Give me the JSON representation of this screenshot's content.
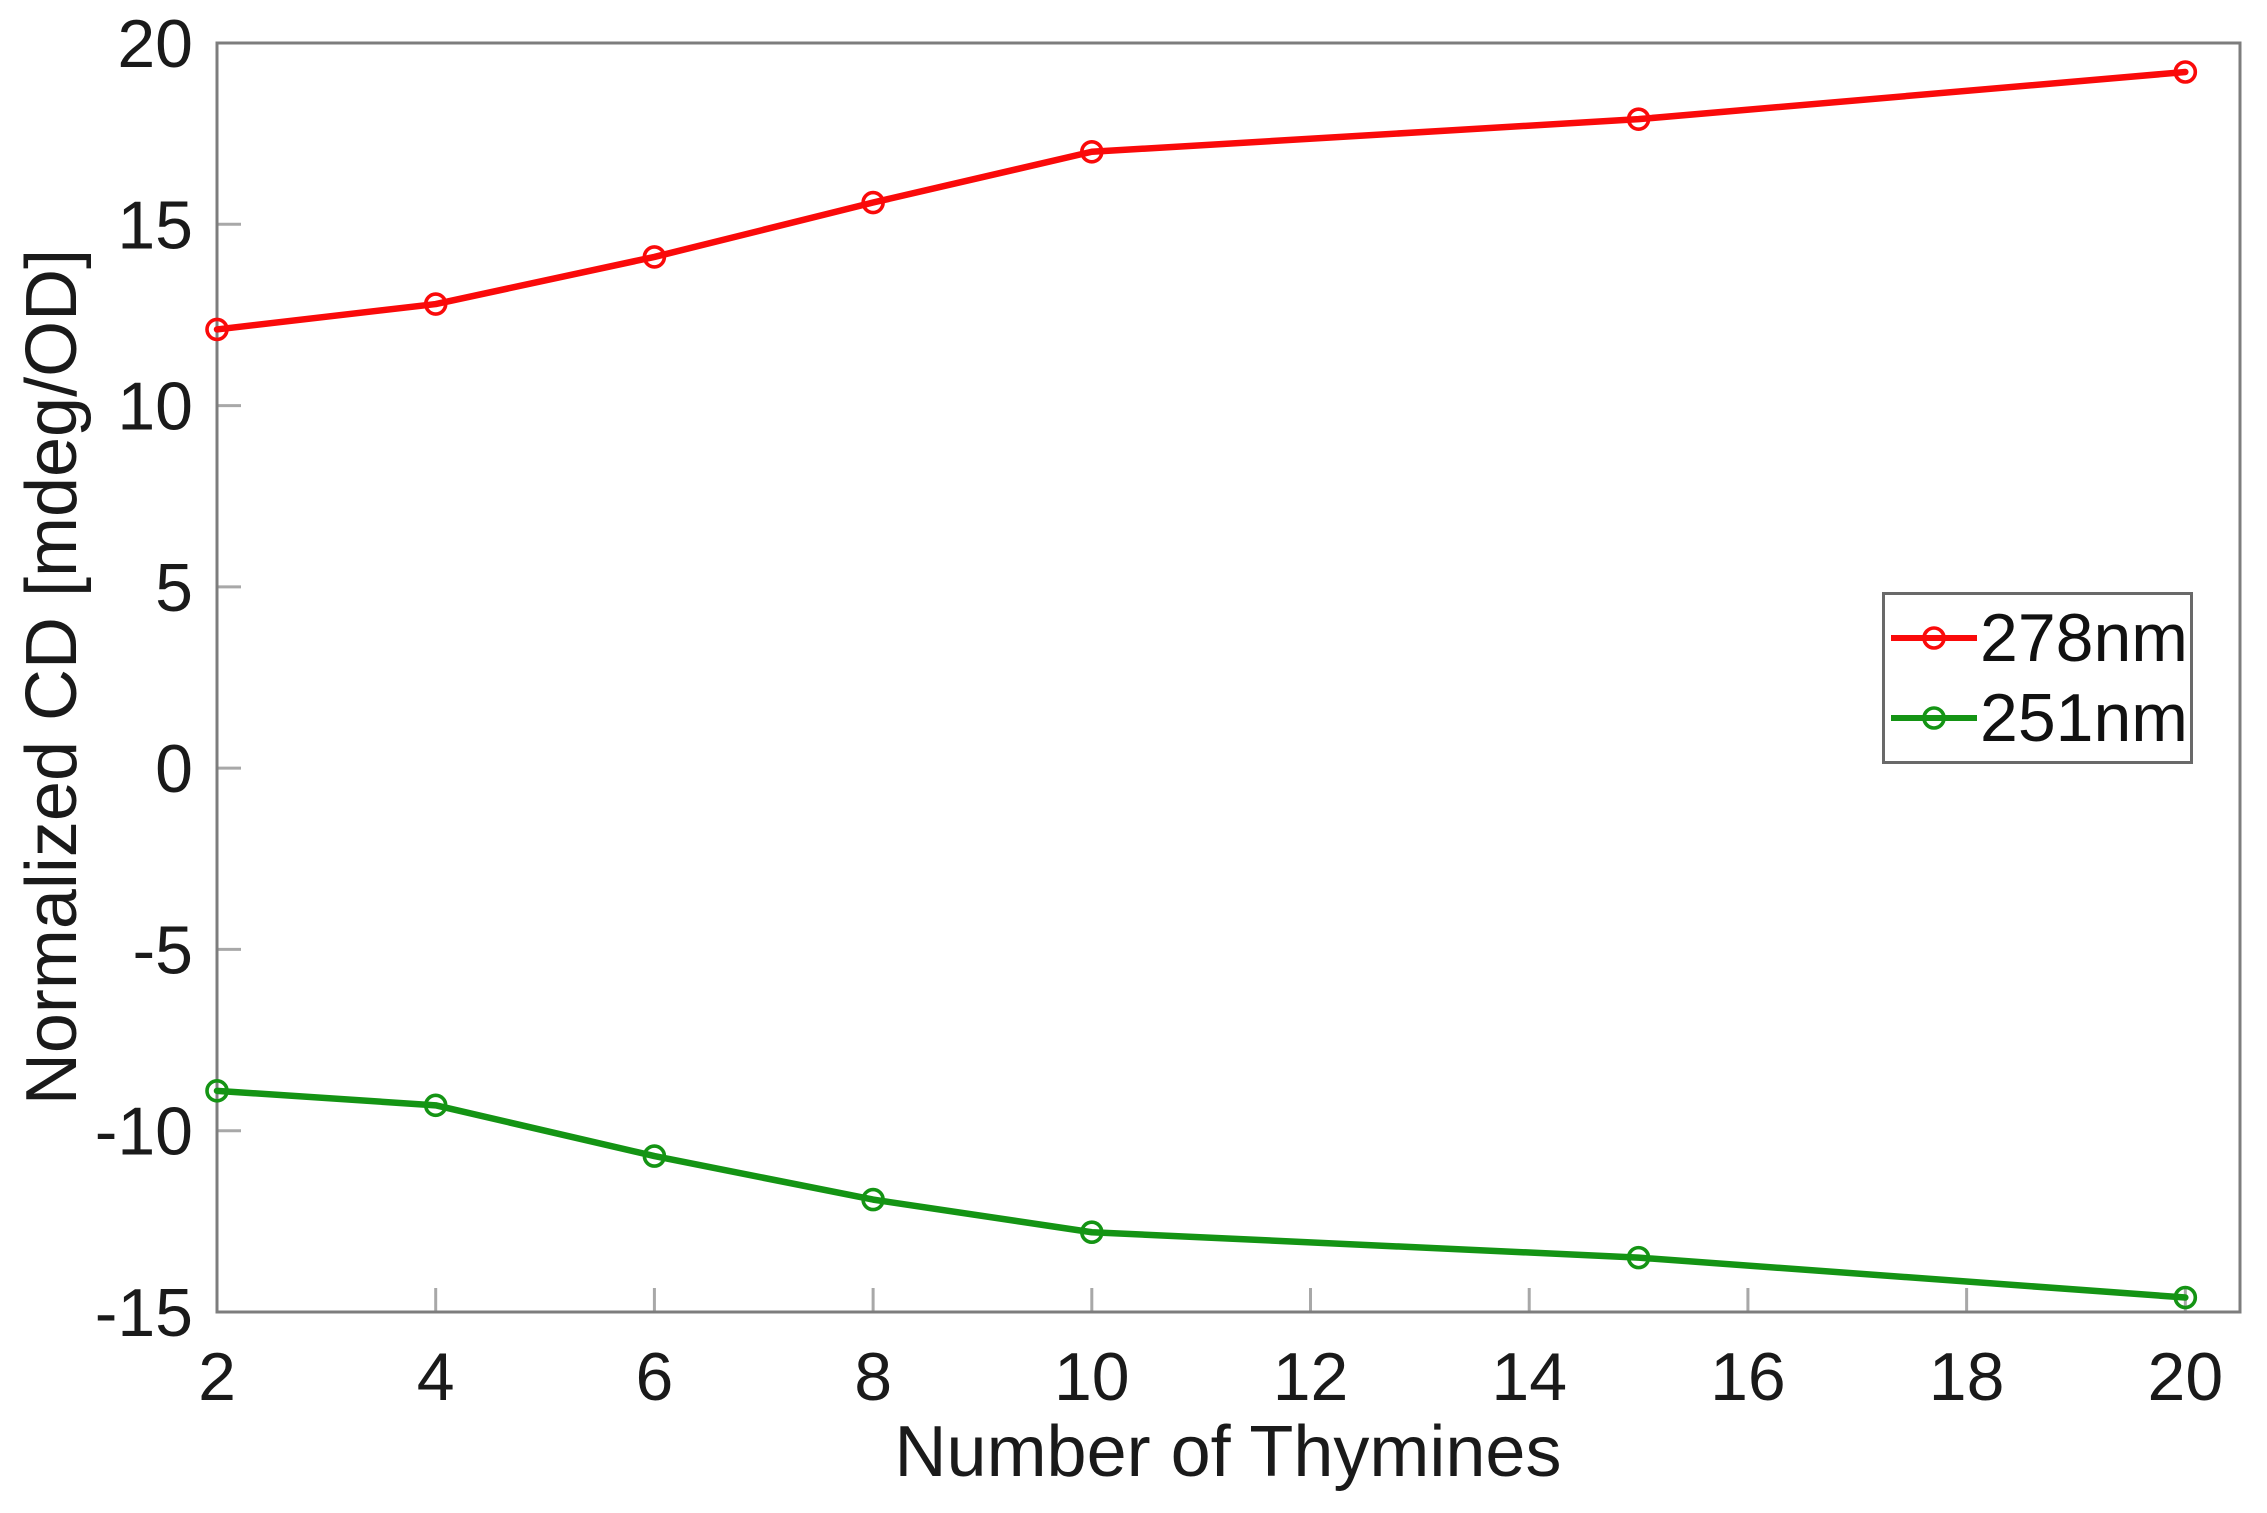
{
  "chart_data": {
    "type": "line",
    "xlabel": "Number of Thymines",
    "ylabel": "Normalized CD [mdeg/OD]",
    "x": [
      2,
      4,
      6,
      8,
      10,
      15,
      20
    ],
    "series": [
      {
        "name": "278nm",
        "color": "#fa0a0a",
        "marker": "open-circle",
        "values": [
          12.1,
          12.8,
          14.1,
          15.6,
          17.0,
          17.9,
          19.2
        ]
      },
      {
        "name": "251nm",
        "color": "#149414",
        "marker": "open-circle",
        "values": [
          -8.9,
          -9.3,
          -10.7,
          -11.9,
          -12.8,
          -13.5,
          -14.6
        ]
      }
    ],
    "x_ticks": [
      2,
      4,
      6,
      8,
      10,
      12,
      14,
      16,
      18,
      20
    ],
    "y_ticks": [
      -15,
      -10,
      -5,
      0,
      5,
      10,
      15,
      20
    ],
    "xlim": [
      2,
      20.5
    ],
    "ylim": [
      -15,
      20
    ],
    "grid": false,
    "legend_position": "inside-middle-right",
    "style": {
      "axis_color": "#7d7d7d",
      "tick_color": "#a8a8a8",
      "text_color": "#1a1a1a",
      "background": "#ffffff"
    }
  }
}
